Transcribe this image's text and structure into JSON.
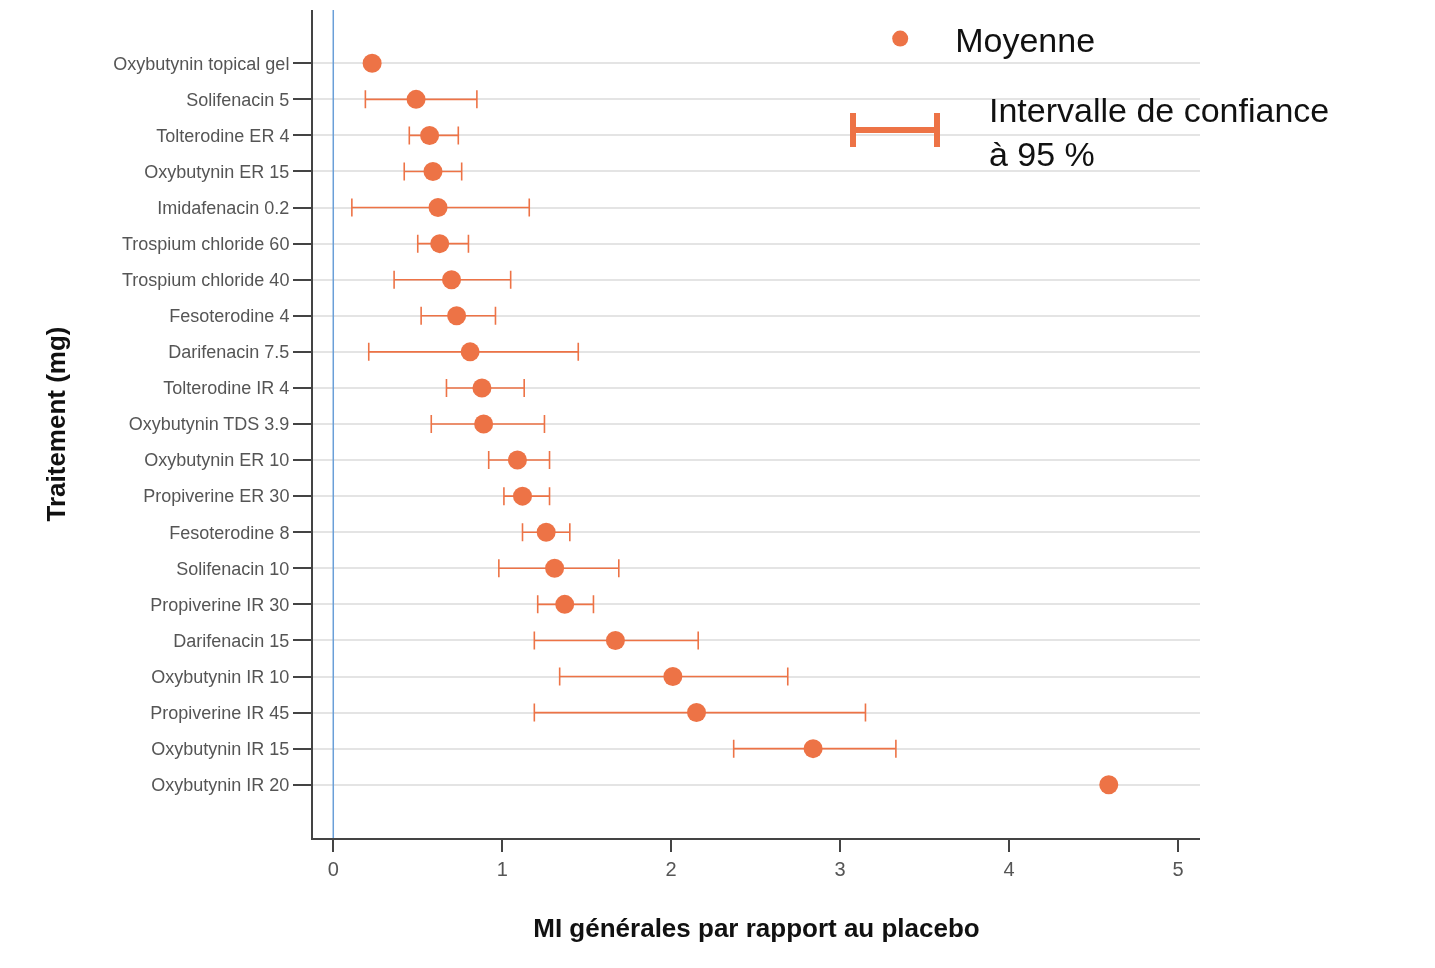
{
  "chart_data": {
    "type": "scatter",
    "xlabel": "MI générales par rapport au placebo",
    "ylabel": "Traitement (mg)",
    "categories": [
      "Oxybutynin topical gel",
      "Solifenacin 5",
      "Tolterodine ER 4",
      "Oxybutynin ER 15",
      "Imidafenacin 0.2",
      "Trospium chloride 60",
      "Trospium chloride 40",
      "Fesoterodine 4",
      "Darifenacin 7.5",
      "Tolterodine IR 4",
      "Oxybutynin TDS 3.9",
      "Oxybutynin ER 10",
      "Propiverine ER 30",
      "Fesoterodine 8",
      "Solifenacin 10",
      "Propiverine IR 30",
      "Darifenacin 15",
      "Oxybutynin IR 10",
      "Propiverine IR 45",
      "Oxybutynin IR 15",
      "Oxybutynin IR 20"
    ],
    "orientation": "horizontal",
    "series": [
      {
        "name": "Moyenne",
        "color": "#ed7346",
        "values": [
          0.23,
          0.49,
          0.57,
          0.59,
          0.62,
          0.63,
          0.7,
          0.73,
          0.81,
          0.88,
          0.89,
          1.09,
          1.12,
          1.26,
          1.31,
          1.37,
          1.67,
          2.01,
          2.15,
          2.84,
          4.59
        ],
        "errors": [
          null,
          [
            0.19,
            0.85
          ],
          [
            0.45,
            0.74
          ],
          [
            0.42,
            0.76
          ],
          [
            0.11,
            1.16
          ],
          [
            0.5,
            0.8
          ],
          [
            0.36,
            1.05
          ],
          [
            0.52,
            0.96
          ],
          [
            0.21,
            1.45
          ],
          [
            0.67,
            1.13
          ],
          [
            0.58,
            1.25
          ],
          [
            0.92,
            1.28
          ],
          [
            1.01,
            1.28
          ],
          [
            1.12,
            1.4
          ],
          [
            0.98,
            1.69
          ],
          [
            1.21,
            1.54
          ],
          [
            1.19,
            2.16
          ],
          [
            1.34,
            2.69
          ],
          [
            1.19,
            3.15
          ],
          [
            2.37,
            3.33
          ],
          null
        ]
      }
    ],
    "xlim": [
      -0.12,
      5.13
    ],
    "xticks": [
      0,
      1,
      2,
      3,
      4,
      5
    ],
    "ref_lines": [
      {
        "axis": "x",
        "value": 0,
        "color": "#6a9fd8"
      }
    ],
    "annotations": [
      "Intervalle de confiance à 95 %"
    ],
    "grid": "y",
    "legend": "top right",
    "marker": "circle"
  }
}
